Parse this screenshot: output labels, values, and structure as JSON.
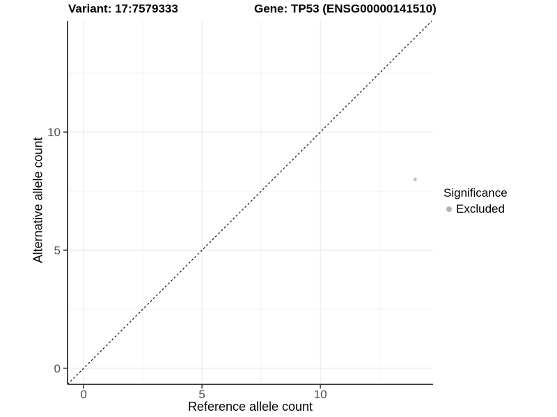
{
  "chart_data": {
    "type": "scatter",
    "titles": [
      "Variant: 17:7579333",
      "Gene: TP53 (ENSG00000141510)"
    ],
    "xlabel": "Reference allele count",
    "ylabel": "Alternative allele count",
    "xlim": [
      -0.68,
      14.76
    ],
    "ylim": [
      -0.68,
      14.71
    ],
    "xticks": [
      0,
      5,
      10
    ],
    "yticks": [
      0,
      5,
      10
    ],
    "xticks_minor": [
      2.5,
      7.5,
      12.5
    ],
    "yticks_minor": [
      2.5,
      7.5,
      12.5
    ],
    "grid": "major+minor",
    "reference_line": {
      "type": "identity",
      "slope": 1,
      "intercept": 0,
      "style": "dashed",
      "color": "#111111"
    },
    "series": [
      {
        "name": "Excluded",
        "color": "#c2c2c2",
        "point_radius": 2.5,
        "points": [
          {
            "x": 14,
            "y": 8
          }
        ]
      }
    ],
    "legend": {
      "title": "Significance",
      "position": "right",
      "items": [
        {
          "label": "Excluded",
          "color": "#b3b3b3"
        }
      ]
    },
    "colors": {
      "grid_major": "#e5e5e5",
      "grid_minor": "#f0f0f0",
      "axis_line": "#464646",
      "tick": "#333333",
      "tick_label": "#4d4d4d"
    }
  }
}
